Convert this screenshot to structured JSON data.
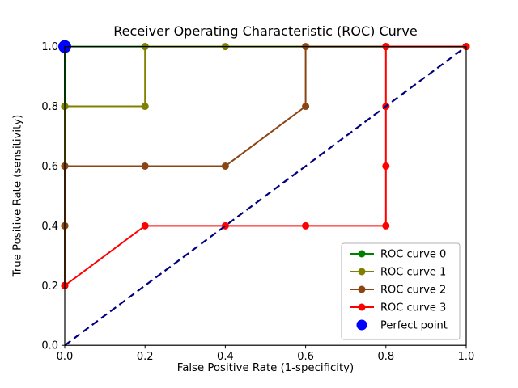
{
  "chart_data": {
    "type": "line",
    "title": "Receiver Operating Characteristic (ROC) Curve",
    "xlabel": "False Positive Rate (1-specificity)",
    "ylabel": "True Positive Rate (sensitivity)",
    "xlim": [
      0.0,
      1.0
    ],
    "ylim": [
      0.0,
      1.0
    ],
    "xticks": [
      0.0,
      0.2,
      0.4,
      0.6,
      0.8,
      1.0
    ],
    "yticks": [
      0.0,
      0.2,
      0.4,
      0.6,
      0.8,
      1.0
    ],
    "xtick_labels": [
      "0.0",
      "0.2",
      "0.4",
      "0.6",
      "0.8",
      "1.0"
    ],
    "ytick_labels": [
      "0.0",
      "0.2",
      "0.4",
      "0.6",
      "0.8",
      "1.0"
    ],
    "grid": false,
    "legend_position": "lower right",
    "series": [
      {
        "name": "ROC curve 0",
        "color": "#008000",
        "points": [
          [
            0,
            0.2
          ],
          [
            0,
            0.4
          ],
          [
            0,
            0.6
          ],
          [
            0,
            0.8
          ],
          [
            0,
            1.0
          ],
          [
            0.2,
            1.0
          ],
          [
            1.0,
            1.0
          ]
        ]
      },
      {
        "name": "ROC curve 1",
        "color": "#808000",
        "points": [
          [
            0,
            0.2
          ],
          [
            0,
            0.4
          ],
          [
            0,
            0.6
          ],
          [
            0,
            0.8
          ],
          [
            0.2,
            0.8
          ],
          [
            0.2,
            1.0
          ],
          [
            0.4,
            1.0
          ],
          [
            1.0,
            1.0
          ]
        ]
      },
      {
        "name": "ROC curve 2",
        "color": "#8B4513",
        "points": [
          [
            0,
            0.2
          ],
          [
            0,
            0.4
          ],
          [
            0,
            0.6
          ],
          [
            0.2,
            0.6
          ],
          [
            0.4,
            0.6
          ],
          [
            0.6,
            0.8
          ],
          [
            0.6,
            1.0
          ],
          [
            0.8,
            1.0
          ],
          [
            1.0,
            1.0
          ]
        ]
      },
      {
        "name": "ROC curve 3",
        "color": "#FF0000",
        "points": [
          [
            0,
            0.2
          ],
          [
            0.2,
            0.4
          ],
          [
            0.4,
            0.4
          ],
          [
            0.6,
            0.4
          ],
          [
            0.8,
            0.4
          ],
          [
            0.8,
            0.6
          ],
          [
            0.8,
            0.8
          ],
          [
            0.8,
            1.0
          ],
          [
            1.0,
            1.0
          ]
        ]
      }
    ],
    "reference_line": {
      "name": "chance-diagonal",
      "style": "dashed",
      "color": "#000080",
      "points": [
        [
          0,
          0
        ],
        [
          1,
          1
        ]
      ]
    },
    "perfect_point": {
      "name": "Perfect point",
      "color": "#0000FF",
      "point": [
        0,
        1
      ]
    },
    "legend_entries": [
      "ROC curve 0",
      "ROC curve 1",
      "ROC curve 2",
      "ROC curve 3",
      "Perfect point"
    ]
  }
}
